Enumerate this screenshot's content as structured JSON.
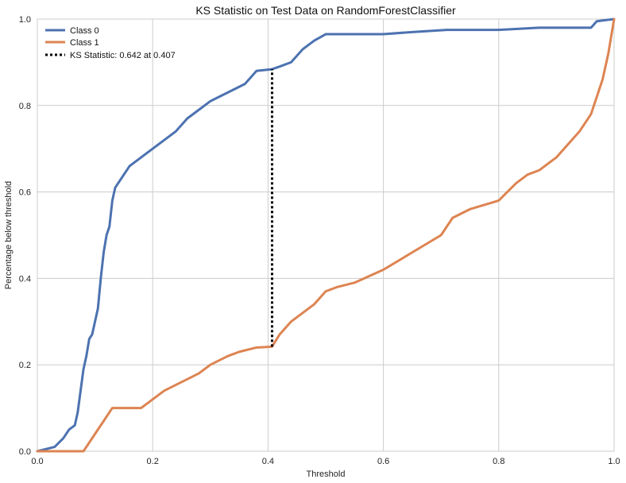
{
  "chart_data": {
    "type": "line",
    "title": "KS Statistic on Test Data on RandomForestClassifier",
    "xlabel": "Threshold",
    "ylabel": "Percentage below threshold",
    "xlim": [
      0.0,
      1.0
    ],
    "ylim": [
      0.0,
      1.0
    ],
    "xticks": [
      "0.0",
      "0.2",
      "0.4",
      "0.6",
      "0.8",
      "1.0"
    ],
    "yticks": [
      "0.0",
      "0.2",
      "0.4",
      "0.6",
      "0.8",
      "1.0"
    ],
    "grid": true,
    "legend_position": "top-left",
    "series": [
      {
        "name": "Class 0",
        "color": "#4c72b0",
        "x": [
          0.0,
          0.03,
          0.045,
          0.055,
          0.065,
          0.07,
          0.075,
          0.08,
          0.085,
          0.09,
          0.095,
          0.1,
          0.105,
          0.11,
          0.115,
          0.12,
          0.125,
          0.13,
          0.135,
          0.14,
          0.145,
          0.15,
          0.155,
          0.16,
          0.17,
          0.18,
          0.2,
          0.22,
          0.24,
          0.26,
          0.28,
          0.3,
          0.33,
          0.36,
          0.38,
          0.407,
          0.42,
          0.44,
          0.46,
          0.48,
          0.5,
          0.55,
          0.6,
          0.65,
          0.71,
          0.8,
          0.87,
          0.96,
          0.97,
          1.0
        ],
        "y": [
          0.0,
          0.01,
          0.03,
          0.05,
          0.06,
          0.09,
          0.14,
          0.19,
          0.22,
          0.26,
          0.27,
          0.3,
          0.33,
          0.4,
          0.46,
          0.5,
          0.52,
          0.58,
          0.61,
          0.62,
          0.63,
          0.64,
          0.65,
          0.66,
          0.67,
          0.68,
          0.7,
          0.72,
          0.74,
          0.77,
          0.79,
          0.81,
          0.83,
          0.85,
          0.88,
          0.884,
          0.89,
          0.9,
          0.93,
          0.95,
          0.965,
          0.965,
          0.965,
          0.97,
          0.975,
          0.975,
          0.98,
          0.98,
          0.995,
          1.0
        ]
      },
      {
        "name": "Class 1",
        "color": "#dd8452",
        "x": [
          0.0,
          0.08,
          0.085,
          0.09,
          0.1,
          0.11,
          0.12,
          0.13,
          0.18,
          0.2,
          0.22,
          0.25,
          0.28,
          0.3,
          0.33,
          0.35,
          0.38,
          0.407,
          0.42,
          0.44,
          0.46,
          0.48,
          0.5,
          0.52,
          0.55,
          0.6,
          0.65,
          0.7,
          0.72,
          0.75,
          0.8,
          0.83,
          0.85,
          0.87,
          0.9,
          0.92,
          0.94,
          0.96,
          0.97,
          0.98,
          0.99,
          1.0
        ],
        "y": [
          0.0,
          0.0,
          0.01,
          0.02,
          0.04,
          0.06,
          0.08,
          0.1,
          0.1,
          0.12,
          0.14,
          0.16,
          0.18,
          0.2,
          0.22,
          0.23,
          0.24,
          0.242,
          0.27,
          0.3,
          0.32,
          0.34,
          0.37,
          0.38,
          0.39,
          0.42,
          0.46,
          0.5,
          0.54,
          0.56,
          0.58,
          0.62,
          0.64,
          0.65,
          0.68,
          0.71,
          0.74,
          0.78,
          0.82,
          0.86,
          0.92,
          1.0
        ]
      }
    ],
    "ks_line": {
      "label": "KS Statistic: 0.642 at 0.407",
      "x": 0.407,
      "y_start": 0.242,
      "y_end": 0.884,
      "color": "#000000"
    }
  }
}
